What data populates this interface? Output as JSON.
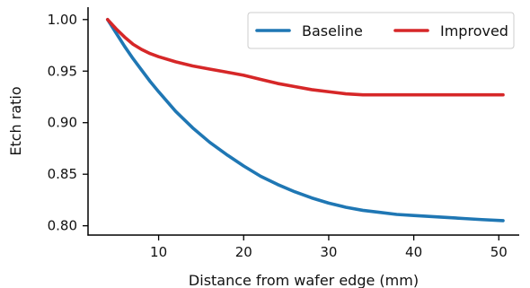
{
  "chart_data": {
    "type": "line",
    "title": "",
    "xlabel": "Distance from wafer edge (mm)",
    "ylabel": "Etch ratio",
    "xlim": [
      1.7,
      52.4
    ],
    "ylim": [
      0.791,
      1.012
    ],
    "xticks": [
      10,
      20,
      30,
      40,
      50
    ],
    "yticks": [
      0.8,
      0.85,
      0.9,
      0.95,
      1.0
    ],
    "xtick_labels": [
      "10",
      "20",
      "30",
      "40",
      "50"
    ],
    "ytick_labels": [
      "0.80",
      "0.85",
      "0.90",
      "0.95",
      "1.00"
    ],
    "grid": false,
    "legend_position": "top-right",
    "series": [
      {
        "name": "Baseline",
        "color": "#1f77b4",
        "x": [
          4,
          5,
          6,
          7,
          8,
          9,
          10,
          12,
          14,
          16,
          18,
          20,
          22,
          24,
          26,
          28,
          30,
          32,
          34,
          36,
          38,
          40,
          42,
          44,
          46,
          48,
          50.5
        ],
        "y": [
          1.0,
          0.987,
          0.974,
          0.962,
          0.951,
          0.94,
          0.93,
          0.911,
          0.895,
          0.881,
          0.869,
          0.858,
          0.848,
          0.84,
          0.833,
          0.827,
          0.822,
          0.818,
          0.815,
          0.813,
          0.811,
          0.81,
          0.809,
          0.808,
          0.807,
          0.806,
          0.805
        ]
      },
      {
        "name": "Improved",
        "color": "#d62728",
        "x": [
          4,
          5,
          6,
          7,
          8,
          9,
          10,
          12,
          14,
          16,
          18,
          20,
          22,
          24,
          26,
          28,
          30,
          32,
          34,
          36,
          38,
          40,
          42,
          44,
          46,
          48,
          50.5
        ],
        "y": [
          1.0,
          0.991,
          0.983,
          0.976,
          0.971,
          0.967,
          0.964,
          0.959,
          0.955,
          0.952,
          0.949,
          0.946,
          0.942,
          0.938,
          0.935,
          0.932,
          0.93,
          0.928,
          0.927,
          0.927,
          0.927,
          0.927,
          0.927,
          0.927,
          0.927,
          0.927,
          0.927
        ]
      }
    ]
  }
}
